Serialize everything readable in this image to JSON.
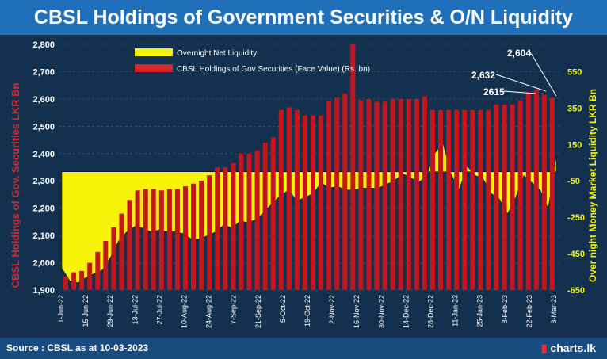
{
  "title": "CBSL Holdings of Government Securities & O/N Liquidity",
  "footer": {
    "source": "Source : CBSL as at 10-03-2023",
    "brand": "charts.lk"
  },
  "colors": {
    "holdings": "#c4161c",
    "liquidity": "#f7f20a",
    "annotation": "#ffffff",
    "grid": "#3c5a78"
  },
  "icons": {
    "brand": "chart-bars-icon"
  },
  "chart_data": {
    "type": "bar",
    "title": "CBSL Holdings of Government Securities & O/N Liquidity",
    "ylabel_left": "CBSL Holdings of Gov. Securities LKR Bn",
    "ylabel_right": "Over night Money Market Liquidity LKR Bn",
    "ylim_left": [
      1900,
      2800
    ],
    "ylim_right": [
      -650,
      700
    ],
    "yticks_left": [
      "1,900",
      "2,000",
      "2,100",
      "2,200",
      "2,300",
      "2,400",
      "2,500",
      "2,600",
      "2,700",
      "2,800"
    ],
    "yticks_right": [
      "-650",
      "-450",
      "-250",
      "-50",
      "150",
      "350",
      "550"
    ],
    "legend": [
      {
        "name": "Overnight Net Liquidity",
        "swatch": "yellow"
      },
      {
        "name": "CBSL Holdings of  Gov Securities (Face Value)  (Rs. bn)",
        "swatch": "red"
      }
    ],
    "xticks": [
      "1-Jun-22",
      "15-Jun-22",
      "29-Jun-22",
      "13-Jul-22",
      "27-Jul-22",
      "10-Aug-22",
      "24-Aug-22",
      "7-Sep-22",
      "21-Sep-22",
      "5-Oct-22",
      "19-Oct-22",
      "2-Nov-22",
      "16-Nov-22",
      "30-Nov-22",
      "14-Dec-22",
      "28-Dec-22",
      "11-Jan-23",
      "25-Jan-23",
      "8-Feb-23",
      "22-Feb-23",
      "8-Mar-23"
    ],
    "annotations": [
      {
        "label": "2,604",
        "value": 2604
      },
      {
        "label": "2,632",
        "value": 2632
      },
      {
        "label": "2615",
        "value": 2615
      }
    ],
    "series": [
      {
        "name": "CBSL Holdings of  Gov Securities (Face Value)  (Rs. bn)",
        "axis": "left",
        "values": [
          1950,
          1965,
          1970,
          2000,
          2040,
          2080,
          2130,
          2180,
          2230,
          2265,
          2270,
          2270,
          2265,
          2270,
          2270,
          2280,
          2290,
          2300,
          2320,
          2350,
          2350,
          2365,
          2400,
          2400,
          2410,
          2440,
          2460,
          2560,
          2570,
          2560,
          2540,
          2540,
          2540,
          2590,
          2605,
          2620,
          2800,
          2595,
          2600,
          2590,
          2590,
          2600,
          2600,
          2600,
          2600,
          2610,
          2560,
          2560,
          2560,
          2560,
          2560,
          2560,
          2560,
          2560,
          2580,
          2580,
          2580,
          2595,
          2620,
          2632,
          2615,
          2604
        ]
      },
      {
        "name": "Overnight Net Liquidity",
        "axis": "right",
        "values": [
          -530,
          -600,
          -610,
          -580,
          -560,
          -540,
          -470,
          -380,
          -330,
          -300,
          -310,
          -330,
          -320,
          -330,
          -330,
          -340,
          -370,
          -370,
          -350,
          -330,
          -290,
          -310,
          -270,
          -280,
          -260,
          -220,
          -170,
          -130,
          -100,
          -160,
          -140,
          -120,
          -60,
          -90,
          -80,
          -100,
          -100,
          -90,
          -90,
          -90,
          -70,
          -50,
          -10,
          -30,
          -60,
          -20,
          100,
          160,
          -10,
          -100,
          30,
          -20,
          -40,
          -120,
          -150,
          -230,
          -140,
          -20,
          -60,
          -100,
          -200,
          90
        ]
      }
    ]
  }
}
